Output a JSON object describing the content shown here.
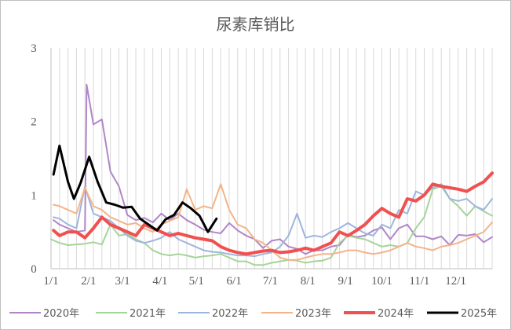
{
  "chart_data": {
    "type": "line",
    "title": "尿素库销比",
    "xlabel": "",
    "ylabel": "",
    "ylim": [
      0,
      3
    ],
    "yticks": [
      "0",
      "1",
      "2",
      "3"
    ],
    "x_tick_labels": [
      "1/1",
      "2/1",
      "3/1",
      "4/1",
      "5/1",
      "6/1",
      "7/1",
      "8/1",
      "9/1",
      "10/1",
      "11/1",
      "12/1"
    ],
    "xlim": [
      0,
      52
    ],
    "gridlines": "vertical",
    "legend_position": "bottom",
    "series": [
      {
        "name": "2020年",
        "color": "#b086c8",
        "width": 2,
        "points": [
          [
            0.3,
            0.66
          ],
          [
            1,
            0.6
          ],
          [
            2,
            0.55
          ],
          [
            3,
            0.5
          ],
          [
            4,
            0.52
          ],
          [
            4.2,
            2.5
          ],
          [
            5,
            1.96
          ],
          [
            6,
            2.03
          ],
          [
            7,
            1.32
          ],
          [
            8,
            1.12
          ],
          [
            9,
            0.73
          ],
          [
            10,
            0.66
          ],
          [
            11,
            0.69
          ],
          [
            12,
            0.63
          ],
          [
            13,
            0.75
          ],
          [
            14,
            0.66
          ],
          [
            15,
            0.75
          ],
          [
            16,
            0.66
          ],
          [
            17,
            0.6
          ],
          [
            18,
            0.53
          ],
          [
            19,
            0.5
          ],
          [
            20,
            0.48
          ],
          [
            21,
            0.62
          ],
          [
            22,
            0.52
          ],
          [
            23,
            0.45
          ],
          [
            24,
            0.4
          ],
          [
            25,
            0.28
          ],
          [
            26,
            0.38
          ],
          [
            27,
            0.4
          ],
          [
            28,
            0.3
          ],
          [
            29,
            0.27
          ],
          [
            30,
            0.2
          ],
          [
            31,
            0.25
          ],
          [
            32,
            0.25
          ],
          [
            33,
            0.3
          ],
          [
            34,
            0.32
          ],
          [
            35,
            0.46
          ],
          [
            36,
            0.43
          ],
          [
            37,
            0.45
          ],
          [
            38,
            0.52
          ],
          [
            39,
            0.56
          ],
          [
            40,
            0.4
          ],
          [
            41,
            0.55
          ],
          [
            42,
            0.6
          ],
          [
            43,
            0.44
          ],
          [
            44,
            0.44
          ],
          [
            45,
            0.4
          ],
          [
            46,
            0.44
          ],
          [
            47,
            0.32
          ],
          [
            48,
            0.46
          ],
          [
            49,
            0.45
          ],
          [
            50,
            0.47
          ],
          [
            51,
            0.36
          ],
          [
            52,
            0.43
          ]
        ]
      },
      {
        "name": "2021年",
        "color": "#a6d49a",
        "width": 2,
        "points": [
          [
            0,
            0.4
          ],
          [
            1,
            0.35
          ],
          [
            2,
            0.32
          ],
          [
            3,
            0.33
          ],
          [
            4,
            0.34
          ],
          [
            5,
            0.36
          ],
          [
            6,
            0.33
          ],
          [
            7,
            0.6
          ],
          [
            8,
            0.45
          ],
          [
            9,
            0.47
          ],
          [
            10,
            0.4
          ],
          [
            11,
            0.35
          ],
          [
            12,
            0.25
          ],
          [
            13,
            0.2
          ],
          [
            14,
            0.18
          ],
          [
            15,
            0.2
          ],
          [
            16,
            0.18
          ],
          [
            17,
            0.15
          ],
          [
            18,
            0.17
          ],
          [
            19,
            0.18
          ],
          [
            20,
            0.2
          ],
          [
            21,
            0.15
          ],
          [
            22,
            0.1
          ],
          [
            23,
            0.1
          ],
          [
            24,
            0.05
          ],
          [
            25,
            0.05
          ],
          [
            26,
            0.08
          ],
          [
            27,
            0.1
          ],
          [
            28,
            0.12
          ],
          [
            29,
            0.11
          ],
          [
            30,
            0.08
          ],
          [
            31,
            0.1
          ],
          [
            32,
            0.11
          ],
          [
            33,
            0.15
          ],
          [
            34,
            0.35
          ],
          [
            35,
            0.45
          ],
          [
            36,
            0.42
          ],
          [
            37,
            0.4
          ],
          [
            38,
            0.35
          ],
          [
            39,
            0.3
          ],
          [
            40,
            0.32
          ],
          [
            41,
            0.3
          ],
          [
            42,
            0.35
          ],
          [
            43,
            0.55
          ],
          [
            44,
            0.7
          ],
          [
            45,
            1.08
          ],
          [
            46,
            1.12
          ],
          [
            47,
            0.95
          ],
          [
            48,
            0.85
          ],
          [
            49,
            0.72
          ],
          [
            50,
            0.85
          ],
          [
            51,
            0.78
          ],
          [
            52,
            0.72
          ]
        ]
      },
      {
        "name": "2022年",
        "color": "#9eb6dc",
        "width": 2,
        "points": [
          [
            0.3,
            0.7
          ],
          [
            1,
            0.68
          ],
          [
            2,
            0.6
          ],
          [
            3,
            0.55
          ],
          [
            4,
            1.12
          ],
          [
            5,
            0.75
          ],
          [
            6,
            0.7
          ],
          [
            7,
            0.65
          ],
          [
            8,
            0.55
          ],
          [
            9,
            0.45
          ],
          [
            10,
            0.38
          ],
          [
            11,
            0.35
          ],
          [
            12,
            0.38
          ],
          [
            13,
            0.42
          ],
          [
            14,
            0.5
          ],
          [
            15,
            0.4
          ],
          [
            16,
            0.35
          ],
          [
            17,
            0.3
          ],
          [
            18,
            0.25
          ],
          [
            19,
            0.23
          ],
          [
            20,
            0.22
          ],
          [
            21,
            0.2
          ],
          [
            22,
            0.18
          ],
          [
            23,
            0.18
          ],
          [
            24,
            0.17
          ],
          [
            25,
            0.2
          ],
          [
            26,
            0.22
          ],
          [
            27,
            0.3
          ],
          [
            28,
            0.45
          ],
          [
            29,
            0.75
          ],
          [
            30,
            0.42
          ],
          [
            31,
            0.45
          ],
          [
            32,
            0.43
          ],
          [
            33,
            0.5
          ],
          [
            34,
            0.55
          ],
          [
            35,
            0.62
          ],
          [
            36,
            0.55
          ],
          [
            37,
            0.48
          ],
          [
            38,
            0.45
          ],
          [
            39,
            0.6
          ],
          [
            40,
            0.55
          ],
          [
            41,
            0.8
          ],
          [
            42,
            0.75
          ],
          [
            43,
            1.05
          ],
          [
            44,
            1.0
          ],
          [
            45,
            1.1
          ],
          [
            46,
            1.15
          ],
          [
            47,
            0.95
          ],
          [
            48,
            0.92
          ],
          [
            49,
            0.95
          ],
          [
            50,
            0.85
          ],
          [
            51,
            0.8
          ],
          [
            52,
            0.95
          ]
        ]
      },
      {
        "name": "2023年",
        "color": "#f3b489",
        "width": 2,
        "points": [
          [
            0.3,
            0.87
          ],
          [
            1,
            0.85
          ],
          [
            2,
            0.8
          ],
          [
            3,
            0.75
          ],
          [
            4,
            1.1
          ],
          [
            5,
            0.85
          ],
          [
            6,
            0.8
          ],
          [
            7,
            0.7
          ],
          [
            8,
            0.65
          ],
          [
            9,
            0.6
          ],
          [
            10,
            0.62
          ],
          [
            11,
            0.55
          ],
          [
            12,
            0.5
          ],
          [
            13,
            0.6
          ],
          [
            14,
            0.65
          ],
          [
            15,
            0.7
          ],
          [
            16,
            1.08
          ],
          [
            17,
            0.8
          ],
          [
            18,
            0.85
          ],
          [
            19,
            0.82
          ],
          [
            20,
            1.15
          ],
          [
            21,
            0.8
          ],
          [
            22,
            0.6
          ],
          [
            23,
            0.55
          ],
          [
            24,
            0.4
          ],
          [
            25,
            0.35
          ],
          [
            26,
            0.25
          ],
          [
            27,
            0.15
          ],
          [
            28,
            0.12
          ],
          [
            29,
            0.12
          ],
          [
            30,
            0.15
          ],
          [
            31,
            0.18
          ],
          [
            32,
            0.2
          ],
          [
            33,
            0.2
          ],
          [
            34,
            0.22
          ],
          [
            35,
            0.25
          ],
          [
            36,
            0.25
          ],
          [
            37,
            0.22
          ],
          [
            38,
            0.2
          ],
          [
            39,
            0.22
          ],
          [
            40,
            0.25
          ],
          [
            41,
            0.3
          ],
          [
            42,
            0.35
          ],
          [
            43,
            0.3
          ],
          [
            44,
            0.28
          ],
          [
            45,
            0.25
          ],
          [
            46,
            0.3
          ],
          [
            47,
            0.32
          ],
          [
            48,
            0.35
          ],
          [
            49,
            0.4
          ],
          [
            50,
            0.45
          ],
          [
            51,
            0.5
          ],
          [
            52,
            0.63
          ]
        ]
      },
      {
        "name": "2024年",
        "color": "#f05050",
        "width": 4,
        "points": [
          [
            0.3,
            0.52
          ],
          [
            1,
            0.45
          ],
          [
            2,
            0.5
          ],
          [
            3,
            0.5
          ],
          [
            4,
            0.42
          ],
          [
            5,
            0.55
          ],
          [
            6,
            0.7
          ],
          [
            7,
            0.6
          ],
          [
            8,
            0.55
          ],
          [
            9,
            0.5
          ],
          [
            10,
            0.45
          ],
          [
            11,
            0.6
          ],
          [
            12,
            0.55
          ],
          [
            13,
            0.5
          ],
          [
            14,
            0.45
          ],
          [
            15,
            0.48
          ],
          [
            16,
            0.45
          ],
          [
            17,
            0.42
          ],
          [
            18,
            0.4
          ],
          [
            19,
            0.38
          ],
          [
            20,
            0.3
          ],
          [
            21,
            0.25
          ],
          [
            22,
            0.22
          ],
          [
            23,
            0.2
          ],
          [
            24,
            0.22
          ],
          [
            25,
            0.24
          ],
          [
            26,
            0.25
          ],
          [
            27,
            0.22
          ],
          [
            28,
            0.23
          ],
          [
            29,
            0.25
          ],
          [
            30,
            0.28
          ],
          [
            31,
            0.25
          ],
          [
            32,
            0.3
          ],
          [
            33,
            0.35
          ],
          [
            34,
            0.5
          ],
          [
            35,
            0.45
          ],
          [
            36,
            0.52
          ],
          [
            37,
            0.6
          ],
          [
            38,
            0.72
          ],
          [
            39,
            0.82
          ],
          [
            40,
            0.75
          ],
          [
            41,
            0.7
          ],
          [
            42,
            0.95
          ],
          [
            43,
            0.92
          ],
          [
            44,
            1.0
          ],
          [
            45,
            1.15
          ],
          [
            46,
            1.12
          ],
          [
            47,
            1.1
          ],
          [
            48,
            1.08
          ],
          [
            49,
            1.05
          ],
          [
            50,
            1.12
          ],
          [
            51,
            1.18
          ],
          [
            52,
            1.3
          ]
        ]
      },
      {
        "name": "2025年",
        "color": "#000000",
        "width": 3,
        "points": [
          [
            0.3,
            1.28
          ],
          [
            1,
            1.67
          ],
          [
            2,
            1.18
          ],
          [
            2.7,
            0.95
          ],
          [
            3.5,
            1.17
          ],
          [
            4.5,
            1.52
          ],
          [
            5.5,
            1.18
          ],
          [
            6.5,
            0.9
          ],
          [
            7.5,
            0.87
          ],
          [
            8.5,
            0.83
          ],
          [
            9.5,
            0.84
          ],
          [
            10.5,
            0.68
          ],
          [
            11.5,
            0.6
          ],
          [
            12.5,
            0.52
          ],
          [
            13.5,
            0.67
          ],
          [
            14.5,
            0.73
          ],
          [
            15.5,
            0.9
          ],
          [
            16.5,
            0.82
          ],
          [
            17.5,
            0.72
          ],
          [
            18.5,
            0.5
          ],
          [
            19.5,
            0.68
          ]
        ]
      }
    ]
  }
}
